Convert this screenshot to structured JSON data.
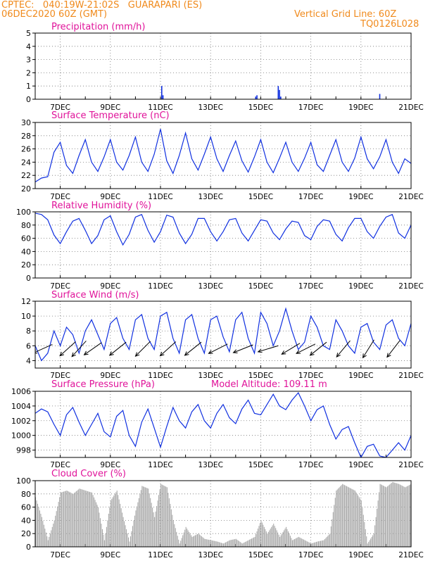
{
  "header": {
    "line1": "CPTEC:   040:19W-21:02S   GUARAPARI (ES)",
    "line2": "06DEC2020 60Z (GMT)",
    "grid_note": "Vertical Grid Line: 60Z",
    "code": "TQ0126L028",
    "model_altitude": "Model Altitude: 109.11 m"
  },
  "colors": {
    "header": "#f08a1c",
    "title": "#e0139a",
    "line": "#1030e0",
    "bar": "#1030e0",
    "cloud": "#a8a8a8",
    "wind": "#000000"
  },
  "x_axis": {
    "start_day": 6,
    "end_day": 21,
    "tick_labels": [
      "7DEC",
      "9DEC",
      "11DEC",
      "13DEC",
      "15DEC",
      "17DEC",
      "19DEC",
      "21DEC"
    ],
    "tick_days": [
      7,
      9,
      11,
      13,
      15,
      17,
      19,
      21
    ]
  },
  "chart_data": [
    {
      "type": "bar",
      "title": "Precipitation (mm/h)",
      "ylim": [
        0,
        5
      ],
      "yticks": [
        0,
        1,
        2,
        3,
        4,
        5
      ],
      "x": [
        11.05,
        11.1,
        14.8,
        14.85,
        15.7,
        15.75,
        15.8,
        19.75
      ],
      "values": [
        1.0,
        0.3,
        0.2,
        0.3,
        1.0,
        0.7,
        0.2,
        0.4
      ]
    },
    {
      "type": "line",
      "title": "Surface Temperature (nC)",
      "ylim": [
        20,
        30
      ],
      "yticks": [
        20,
        22,
        24,
        26,
        28,
        30
      ],
      "x": [
        6.0,
        6.25,
        6.5,
        6.75,
        7.0,
        7.25,
        7.5,
        7.75,
        8.0,
        8.25,
        8.5,
        8.75,
        9.0,
        9.25,
        9.5,
        9.75,
        10.0,
        10.25,
        10.5,
        10.75,
        11.0,
        11.25,
        11.5,
        11.75,
        12.0,
        12.25,
        12.5,
        12.75,
        13.0,
        13.25,
        13.5,
        13.75,
        14.0,
        14.25,
        14.5,
        14.75,
        15.0,
        15.25,
        15.5,
        15.75,
        16.0,
        16.25,
        16.5,
        16.75,
        17.0,
        17.25,
        17.5,
        17.75,
        18.0,
        18.25,
        18.5,
        18.75,
        19.0,
        19.25,
        19.5,
        19.75,
        20.0,
        20.25,
        20.5,
        20.75,
        21.0
      ],
      "values": [
        21.0,
        21.6,
        21.8,
        25.5,
        27.0,
        23.5,
        22.3,
        25.0,
        27.4,
        24.0,
        22.6,
        24.8,
        27.4,
        24.0,
        22.8,
        25.0,
        27.8,
        24.0,
        22.6,
        25.2,
        29.0,
        24.2,
        22.3,
        25.0,
        28.4,
        24.5,
        22.8,
        25.2,
        27.8,
        24.5,
        22.6,
        25.0,
        27.2,
        24.2,
        22.5,
        24.8,
        27.4,
        24.0,
        22.4,
        24.6,
        27.0,
        24.0,
        22.6,
        24.6,
        27.0,
        23.6,
        22.6,
        25.0,
        27.4,
        24.0,
        22.6,
        24.6,
        27.8,
        24.5,
        23.0,
        24.8,
        27.4,
        24.0,
        22.3,
        24.5,
        23.8
      ]
    },
    {
      "type": "line",
      "title": "Relative Humidity (%)",
      "ylim": [
        0,
        100
      ],
      "yticks": [
        0,
        20,
        40,
        60,
        80,
        100
      ],
      "x": [
        6.0,
        6.25,
        6.5,
        6.75,
        7.0,
        7.25,
        7.5,
        7.75,
        8.0,
        8.25,
        8.5,
        8.75,
        9.0,
        9.25,
        9.5,
        9.75,
        10.0,
        10.25,
        10.5,
        10.75,
        11.0,
        11.25,
        11.5,
        11.75,
        12.0,
        12.25,
        12.5,
        12.75,
        13.0,
        13.25,
        13.5,
        13.75,
        14.0,
        14.25,
        14.5,
        14.75,
        15.0,
        15.25,
        15.5,
        15.75,
        16.0,
        16.25,
        16.5,
        16.75,
        17.0,
        17.25,
        17.5,
        17.75,
        18.0,
        18.25,
        18.5,
        18.75,
        19.0,
        19.25,
        19.5,
        19.75,
        20.0,
        20.25,
        20.5,
        20.75,
        21.0
      ],
      "values": [
        98,
        96,
        88,
        65,
        52,
        70,
        86,
        90,
        72,
        52,
        64,
        88,
        94,
        70,
        50,
        66,
        92,
        96,
        72,
        54,
        70,
        95,
        92,
        68,
        52,
        66,
        90,
        90,
        70,
        56,
        70,
        88,
        90,
        68,
        56,
        72,
        88,
        86,
        68,
        58,
        74,
        86,
        84,
        64,
        58,
        78,
        88,
        86,
        66,
        56,
        76,
        90,
        90,
        70,
        60,
        78,
        92,
        96,
        68,
        60,
        80
      ]
    },
    {
      "type": "line",
      "title": "Surface Wind (m/s)",
      "ylim": [
        3,
        12
      ],
      "yticks": [
        4,
        6,
        8,
        10,
        12
      ],
      "x": [
        6.0,
        6.25,
        6.5,
        6.75,
        7.0,
        7.25,
        7.5,
        7.75,
        8.0,
        8.25,
        8.5,
        8.75,
        9.0,
        9.25,
        9.5,
        9.75,
        10.0,
        10.25,
        10.5,
        10.75,
        11.0,
        11.25,
        11.5,
        11.75,
        12.0,
        12.25,
        12.5,
        12.75,
        13.0,
        13.25,
        13.5,
        13.75,
        14.0,
        14.25,
        14.5,
        14.75,
        15.0,
        15.25,
        15.5,
        15.75,
        16.0,
        16.25,
        16.5,
        16.75,
        17.0,
        17.25,
        17.5,
        17.75,
        18.0,
        18.25,
        18.5,
        18.75,
        19.0,
        19.25,
        19.5,
        19.75,
        20.0,
        20.25,
        20.5,
        20.75,
        21.0
      ],
      "values": [
        6.0,
        4.0,
        5.0,
        8.0,
        6.0,
        8.5,
        7.5,
        5.0,
        8.0,
        9.5,
        7.5,
        5.5,
        9.0,
        9.8,
        7.0,
        5.5,
        9.5,
        10.2,
        7.0,
        5.5,
        10.0,
        10.5,
        7.0,
        5.0,
        9.5,
        10.2,
        7.0,
        5.0,
        9.5,
        10.0,
        7.2,
        5.2,
        9.5,
        10.5,
        7.0,
        5.0,
        10.5,
        9.0,
        6.0,
        8.0,
        11.0,
        8.0,
        5.5,
        6.5,
        10.0,
        8.5,
        6.0,
        5.5,
        9.5,
        8.0,
        6.0,
        5.0,
        8.5,
        9.0,
        6.5,
        5.5,
        8.8,
        9.5,
        7.0,
        6.0,
        9.0
      ],
      "arrows": [
        {
          "day": 6.3,
          "dx": 1,
          "dy": 0.45
        },
        {
          "day": 7.3,
          "dx": 1,
          "dy": 0.9
        },
        {
          "day": 7.75,
          "dx": 1,
          "dy": 1.1
        },
        {
          "day": 8.3,
          "dx": 1,
          "dy": 0.7
        },
        {
          "day": 9.3,
          "dx": 1,
          "dy": 0.8
        },
        {
          "day": 10.3,
          "dx": 1,
          "dy": 1.0
        },
        {
          "day": 11.3,
          "dx": 1,
          "dy": 0.9
        },
        {
          "day": 12.3,
          "dx": 1,
          "dy": 0.8
        },
        {
          "day": 13.3,
          "dx": 1,
          "dy": 0.5
        },
        {
          "day": 14.3,
          "dx": 1,
          "dy": 0.4
        },
        {
          "day": 15.3,
          "dx": 1,
          "dy": 0.3
        },
        {
          "day": 16.2,
          "dx": 1,
          "dy": 0.6
        },
        {
          "day": 16.8,
          "dx": 1,
          "dy": 0.5
        },
        {
          "day": 17.3,
          "dx": 1,
          "dy": 0.8
        },
        {
          "day": 18.3,
          "dx": 1,
          "dy": 1.2
        },
        {
          "day": 19.3,
          "dx": 1,
          "dy": 1.6
        },
        {
          "day": 20.3,
          "dx": 1,
          "dy": 1.3
        }
      ]
    },
    {
      "type": "line",
      "title": "Surface Pressure (hPa)",
      "ylim": [
        997,
        1006
      ],
      "yticks": [
        998,
        1000,
        1002,
        1004,
        1006
      ],
      "x": [
        6.0,
        6.25,
        6.5,
        6.75,
        7.0,
        7.25,
        7.5,
        7.75,
        8.0,
        8.25,
        8.5,
        8.75,
        9.0,
        9.25,
        9.5,
        9.75,
        10.0,
        10.25,
        10.5,
        10.75,
        11.0,
        11.25,
        11.5,
        11.75,
        12.0,
        12.25,
        12.5,
        12.75,
        13.0,
        13.25,
        13.5,
        13.75,
        14.0,
        14.25,
        14.5,
        14.75,
        15.0,
        15.25,
        15.5,
        15.75,
        16.0,
        16.25,
        16.5,
        16.75,
        17.0,
        17.25,
        17.5,
        17.75,
        18.0,
        18.25,
        18.5,
        18.75,
        19.0,
        19.25,
        19.5,
        19.75,
        20.0,
        20.25,
        20.5,
        20.75,
        21.0
      ],
      "values": [
        1003.0,
        1003.6,
        1003.2,
        1001.5,
        1000.0,
        1002.8,
        1003.8,
        1001.8,
        1000.0,
        1001.5,
        1003.0,
        1000.5,
        999.8,
        1002.6,
        1003.4,
        1000.0,
        998.5,
        1001.8,
        1003.6,
        1001.0,
        998.4,
        1001.2,
        1003.8,
        1002.0,
        1001.0,
        1003.2,
        1004.2,
        1002.0,
        1001.0,
        1003.0,
        1004.2,
        1002.4,
        1001.6,
        1003.6,
        1004.8,
        1003.0,
        1002.8,
        1004.2,
        1005.6,
        1004.0,
        1003.5,
        1004.8,
        1005.8,
        1004.0,
        1002.0,
        1003.5,
        1004.0,
        1001.5,
        999.5,
        1000.8,
        1001.2,
        999.0,
        997.0,
        998.5,
        998.8,
        997.2,
        997.0,
        998.0,
        999.0,
        998.0,
        1000.0
      ]
    },
    {
      "type": "area",
      "title": "Cloud Cover (%)",
      "ylim": [
        0,
        100
      ],
      "yticks": [
        0,
        20,
        40,
        60,
        80,
        100
      ],
      "x": [
        6.0,
        6.25,
        6.5,
        6.75,
        7.0,
        7.25,
        7.5,
        7.75,
        8.0,
        8.25,
        8.5,
        8.75,
        9.0,
        9.25,
        9.5,
        9.75,
        10.0,
        10.25,
        10.5,
        10.75,
        11.0,
        11.25,
        11.5,
        11.75,
        12.0,
        12.25,
        12.5,
        12.75,
        13.0,
        13.25,
        13.5,
        13.75,
        14.0,
        14.25,
        14.5,
        14.75,
        15.0,
        15.25,
        15.5,
        15.75,
        16.0,
        16.25,
        16.5,
        16.75,
        17.0,
        17.25,
        17.5,
        17.75,
        18.0,
        18.25,
        18.5,
        18.75,
        19.0,
        19.25,
        19.5,
        19.75,
        20.0,
        20.25,
        20.5,
        20.75,
        21.0
      ],
      "values": [
        75,
        45,
        10,
        40,
        82,
        85,
        80,
        88,
        85,
        82,
        60,
        10,
        70,
        85,
        45,
        8,
        55,
        92,
        88,
        45,
        95,
        90,
        40,
        5,
        30,
        15,
        20,
        12,
        10,
        8,
        5,
        10,
        12,
        5,
        10,
        15,
        40,
        20,
        35,
        15,
        30,
        10,
        15,
        10,
        5,
        8,
        10,
        20,
        85,
        95,
        90,
        85,
        70,
        5,
        20,
        95,
        90,
        98,
        95,
        90,
        95
      ]
    }
  ]
}
